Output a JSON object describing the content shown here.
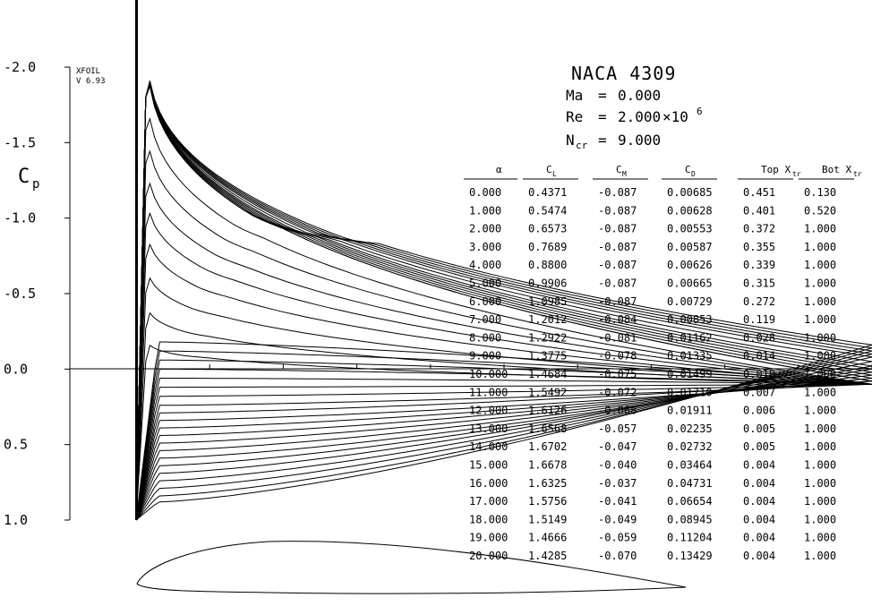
{
  "program": {
    "name": "XFOIL",
    "version": "V 6.93"
  },
  "airfoil": "NACA 4309",
  "flow": {
    "ma_label": "Ma",
    "ma": "0.000",
    "re_label": "Re",
    "re_mantissa": "2.000",
    "re_times": "×10",
    "re_exp": "6",
    "ncr_label": "N",
    "ncr_sub": "cr",
    "ncr": "9.000",
    "equals": "="
  },
  "chart_data": {
    "type": "line",
    "title": "NACA 4309",
    "ylabel": "Cp",
    "ylabel_main": "C",
    "ylabel_sub": "p",
    "ylim": [
      1.0,
      -2.0
    ],
    "y_inverted": true,
    "yticks": [
      "-2.0",
      "-1.5",
      "-1.0",
      "-0.5",
      "0.0",
      "0.5",
      "1.0"
    ],
    "ytick_values": [
      -2.0,
      -1.5,
      -1.0,
      -0.5,
      0.0,
      0.5,
      1.0
    ],
    "xlim": [
      0,
      1
    ],
    "series_alpha": [
      0,
      1,
      2,
      3,
      4,
      5,
      6,
      7,
      8,
      9,
      10,
      11,
      12,
      13,
      14,
      15,
      16,
      17,
      18,
      19,
      20
    ],
    "cp_upper_peak": [
      -0.2,
      -0.45,
      -0.72,
      -0.98,
      -1.22,
      -1.45,
      -1.7,
      -1.95,
      -2.2,
      -2.2,
      -2.2,
      -2.2,
      -2.2,
      -2.2,
      -2.2,
      -2.2,
      -2.2,
      -2.2,
      -2.2,
      -2.2,
      -2.2
    ],
    "cp_upper_te": [
      0.1,
      0.1,
      0.1,
      0.1,
      0.1,
      0.1,
      0.1,
      0.1,
      0.08,
      0.08,
      0.06,
      0.04,
      0.02,
      0.0,
      -0.02,
      -0.05,
      -0.08,
      -0.1,
      -0.12,
      -0.14,
      -0.16
    ],
    "cp_lower_mid": [
      -0.18,
      -0.12,
      -0.06,
      0.0,
      0.06,
      0.12,
      0.18,
      0.24,
      0.29,
      0.34,
      0.39,
      0.44,
      0.49,
      0.54,
      0.59,
      0.64,
      0.69,
      0.74,
      0.79,
      0.84,
      0.88
    ],
    "polar_table": {
      "columns": [
        "α",
        "CL",
        "CM",
        "CD",
        "Top Xtr",
        "Bot Xtr"
      ],
      "column_main": [
        "α",
        "C",
        "C",
        "C",
        "Top X",
        "Bot X"
      ],
      "column_sub": [
        "",
        "L",
        "M",
        "D",
        "tr",
        "tr"
      ],
      "rows": [
        [
          "0.000",
          "0.4371",
          "-0.087",
          "0.00685",
          "0.451",
          "0.130"
        ],
        [
          "1.000",
          "0.5474",
          "-0.087",
          "0.00628",
          "0.401",
          "0.520"
        ],
        [
          "2.000",
          "0.6573",
          "-0.087",
          "0.00553",
          "0.372",
          "1.000"
        ],
        [
          "3.000",
          "0.7689",
          "-0.087",
          "0.00587",
          "0.355",
          "1.000"
        ],
        [
          "4.000",
          "0.8800",
          "-0.087",
          "0.00626",
          "0.339",
          "1.000"
        ],
        [
          "5.000",
          "0.9906",
          "-0.087",
          "0.00665",
          "0.315",
          "1.000"
        ],
        [
          "6.000",
          "1.0985",
          "-0.087",
          "0.00729",
          "0.272",
          "1.000"
        ],
        [
          "7.000",
          "1.2012",
          "-0.084",
          "0.00853",
          "0.119",
          "1.000"
        ],
        [
          "8.000",
          "1.2922",
          "-0.081",
          "0.01162",
          "0.028",
          "1.000"
        ],
        [
          "9.000",
          "1.3775",
          "-0.078",
          "0.01335",
          "0.014",
          "1.000"
        ],
        [
          "10.000",
          "1.4684",
          "-0.075",
          "0.01499",
          "0.010",
          "1.000"
        ],
        [
          "11.000",
          "1.5492",
          "-0.072",
          "0.01710",
          "0.007",
          "1.000"
        ],
        [
          "12.000",
          "1.6126",
          "-0.068",
          "0.01911",
          "0.006",
          "1.000"
        ],
        [
          "13.000",
          "1.6568",
          "-0.057",
          "0.02235",
          "0.005",
          "1.000"
        ],
        [
          "14.000",
          "1.6702",
          "-0.047",
          "0.02732",
          "0.005",
          "1.000"
        ],
        [
          "15.000",
          "1.6678",
          "-0.040",
          "0.03464",
          "0.004",
          "1.000"
        ],
        [
          "16.000",
          "1.6325",
          "-0.037",
          "0.04731",
          "0.004",
          "1.000"
        ],
        [
          "17.000",
          "1.5756",
          "-0.041",
          "0.06654",
          "0.004",
          "1.000"
        ],
        [
          "18.000",
          "1.5149",
          "-0.049",
          "0.08945",
          "0.004",
          "1.000"
        ],
        [
          "19.000",
          "1.4666",
          "-0.059",
          "0.11204",
          "0.004",
          "1.000"
        ],
        [
          "20.000",
          "1.4285",
          "-0.070",
          "0.13429",
          "0.004",
          "1.000"
        ]
      ]
    }
  }
}
